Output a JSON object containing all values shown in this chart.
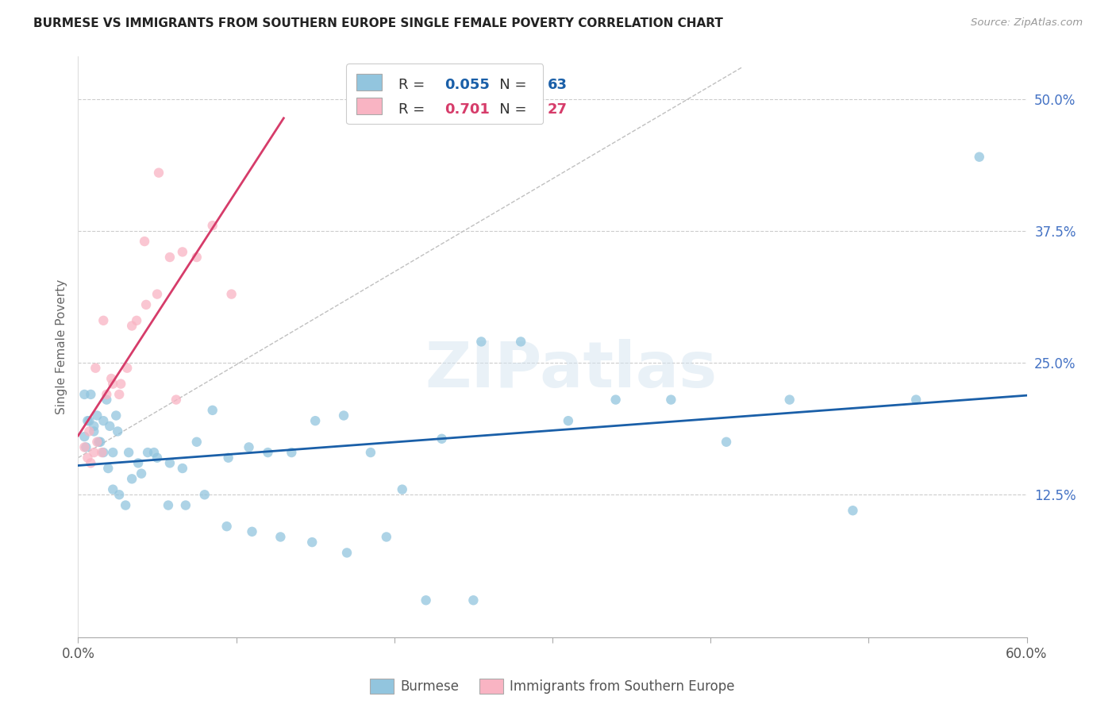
{
  "title": "BURMESE VS IMMIGRANTS FROM SOUTHERN EUROPE SINGLE FEMALE POVERTY CORRELATION CHART",
  "source": "Source: ZipAtlas.com",
  "ylabel": "Single Female Poverty",
  "legend_label1": "Burmese",
  "legend_label2": "Immigrants from Southern Europe",
  "R1": "0.055",
  "N1": "63",
  "R2": "0.701",
  "N2": "27",
  "blue_color": "#92c5de",
  "pink_color": "#f9b4c3",
  "line_blue": "#1a5fa8",
  "line_pink": "#d63c6a",
  "grid_color": "#cccccc",
  "watermark": "ZIPatlas",
  "xlim": [
    0.0,
    0.6
  ],
  "ylim": [
    -0.01,
    0.54
  ],
  "yticks": [
    0.125,
    0.25,
    0.375,
    0.5
  ],
  "ytick_labels": [
    "12.5%",
    "25.0%",
    "37.5%",
    "50.0%"
  ],
  "blue_x": [
    0.004,
    0.006,
    0.008,
    0.01,
    0.012,
    0.014,
    0.016,
    0.018,
    0.02,
    0.022,
    0.024,
    0.004,
    0.007,
    0.01,
    0.013,
    0.016,
    0.019,
    0.022,
    0.026,
    0.03,
    0.034,
    0.038,
    0.044,
    0.05,
    0.058,
    0.066,
    0.075,
    0.085,
    0.095,
    0.108,
    0.12,
    0.135,
    0.15,
    0.168,
    0.185,
    0.205,
    0.23,
    0.255,
    0.28,
    0.31,
    0.34,
    0.375,
    0.41,
    0.45,
    0.49,
    0.53,
    0.57,
    0.025,
    0.032,
    0.04,
    0.048,
    0.057,
    0.068,
    0.08,
    0.094,
    0.11,
    0.128,
    0.148,
    0.17,
    0.195,
    0.22,
    0.25,
    0.005
  ],
  "blue_y": [
    0.22,
    0.195,
    0.22,
    0.185,
    0.2,
    0.175,
    0.195,
    0.215,
    0.19,
    0.165,
    0.2,
    0.18,
    0.195,
    0.19,
    0.175,
    0.165,
    0.15,
    0.13,
    0.125,
    0.115,
    0.14,
    0.155,
    0.165,
    0.16,
    0.155,
    0.15,
    0.175,
    0.205,
    0.16,
    0.17,
    0.165,
    0.165,
    0.195,
    0.2,
    0.165,
    0.13,
    0.178,
    0.27,
    0.27,
    0.195,
    0.215,
    0.215,
    0.175,
    0.215,
    0.11,
    0.215,
    0.445,
    0.185,
    0.165,
    0.145,
    0.165,
    0.115,
    0.115,
    0.125,
    0.095,
    0.09,
    0.085,
    0.08,
    0.07,
    0.085,
    0.025,
    0.025,
    0.17
  ],
  "pink_x": [
    0.004,
    0.006,
    0.008,
    0.01,
    0.012,
    0.015,
    0.018,
    0.022,
    0.026,
    0.031,
    0.037,
    0.043,
    0.05,
    0.058,
    0.066,
    0.075,
    0.085,
    0.097,
    0.007,
    0.011,
    0.016,
    0.021,
    0.027,
    0.034,
    0.042,
    0.051,
    0.062
  ],
  "pink_y": [
    0.17,
    0.16,
    0.155,
    0.165,
    0.175,
    0.165,
    0.22,
    0.23,
    0.22,
    0.245,
    0.29,
    0.305,
    0.315,
    0.35,
    0.355,
    0.35,
    0.38,
    0.315,
    0.185,
    0.245,
    0.29,
    0.235,
    0.23,
    0.285,
    0.365,
    0.43,
    0.215
  ]
}
